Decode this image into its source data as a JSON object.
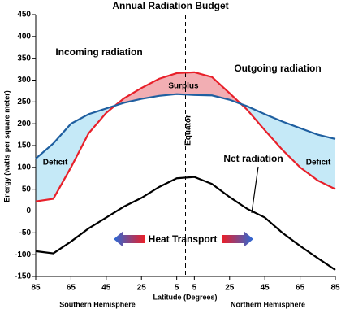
{
  "chart_data": {
    "type": "line",
    "title": "Annual Radiation Budget",
    "ylabel": "Energy (watts per square meter)",
    "xlabel": "Latitude (Degrees)",
    "x": [
      -85,
      -75,
      -65,
      -55,
      -45,
      -35,
      -25,
      -15,
      -5,
      5,
      15,
      25,
      35,
      45,
      55,
      65,
      75,
      85
    ],
    "series": [
      {
        "name": "Incoming radiation",
        "color": "#e8202a",
        "values": [
          22,
          28,
          100,
          178,
          225,
          258,
          282,
          303,
          316,
          318,
          307,
          270,
          232,
          185,
          140,
          100,
          70,
          50
        ]
      },
      {
        "name": "Outgoing radiation",
        "color": "#1f5fa0",
        "values": [
          120,
          155,
          200,
          222,
          235,
          248,
          257,
          264,
          268,
          266,
          265,
          255,
          240,
          222,
          205,
          190,
          175,
          165
        ]
      },
      {
        "name": "Net radiation",
        "color": "#000000",
        "values": [
          -92,
          -97,
          -70,
          -40,
          -15,
          10,
          30,
          55,
          75,
          78,
          62,
          32,
          5,
          -15,
          -50,
          -80,
          -108,
          -135
        ]
      }
    ],
    "xlim": [
      -85,
      85
    ],
    "xticks": [
      {
        "value": -85,
        "label": "85"
      },
      {
        "value": -65,
        "label": "65"
      },
      {
        "value": -45,
        "label": "45"
      },
      {
        "value": -25,
        "label": "25"
      },
      {
        "value": -5,
        "label": "5"
      },
      5,
      25,
      45,
      65,
      85
    ],
    "ylim": [
      -150,
      450
    ],
    "yticks": [
      -150,
      -100,
      -50,
      0,
      50,
      100,
      150,
      200,
      250,
      300,
      350,
      400,
      450
    ],
    "annotations": {
      "surplus": "Surplus",
      "deficit_south": "Deficit",
      "deficit_north": "Deficit",
      "equator": "Equator",
      "heat_transport": "Heat Transport",
      "south": "Southern Hemisphere",
      "north": "Northern Hemisphere"
    }
  }
}
